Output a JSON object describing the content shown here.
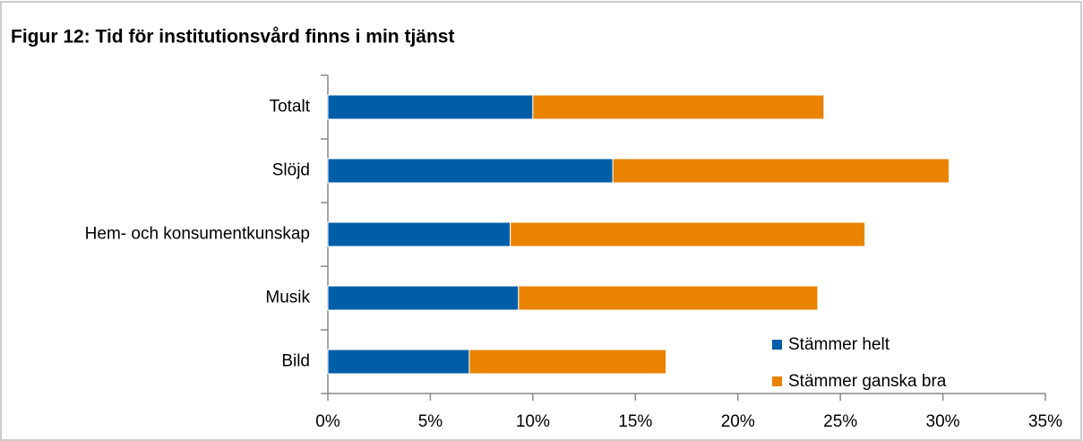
{
  "chart_data": {
    "type": "stacked-barh",
    "title": "Figur 12: Tid för institutionsvård finns i min tjänst",
    "categories": [
      "Totalt",
      "Slöjd",
      "Hem- och konsumentkunskap",
      "Musik",
      "Bild"
    ],
    "series": [
      {
        "name": "Stämmer helt",
        "color": "#005ea8",
        "values": [
          10.0,
          13.9,
          8.9,
          9.3,
          6.9
        ]
      },
      {
        "name": "Stämmer ganska bra",
        "color": "#e98300",
        "values": [
          14.2,
          16.4,
          17.3,
          14.6,
          9.6
        ]
      }
    ],
    "xlim": [
      0,
      35
    ],
    "xticks": [
      {
        "value": 0,
        "label": "0%"
      },
      {
        "value": 5,
        "label": "5%"
      },
      {
        "value": 10,
        "label": "10%"
      },
      {
        "value": 15,
        "label": "15%"
      },
      {
        "value": 20,
        "label": "20%"
      },
      {
        "value": 25,
        "label": "25%"
      },
      {
        "value": 30,
        "label": "30%"
      },
      {
        "value": 35,
        "label": "35%"
      }
    ],
    "legend": "lower right"
  }
}
